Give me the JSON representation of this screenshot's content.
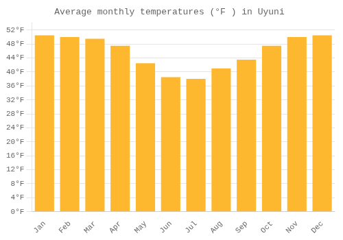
{
  "chart_data": {
    "type": "bar",
    "title": "Average monthly temperatures (°F ) in Uyuni",
    "categories": [
      "Jan",
      "Feb",
      "Mar",
      "Apr",
      "May",
      "Jun",
      "Jul",
      "Aug",
      "Sep",
      "Oct",
      "Nov",
      "Dec"
    ],
    "values": [
      50.5,
      50.0,
      49.5,
      47.5,
      42.5,
      38.5,
      38.0,
      41.0,
      43.5,
      47.5,
      50.0,
      50.5
    ],
    "color": "#FDB830",
    "ylim": [
      0,
      54
    ],
    "yticks": [
      {
        "value": 0,
        "label": "0°F"
      },
      {
        "value": 4,
        "label": "4°F"
      },
      {
        "value": 8,
        "label": "8°F"
      },
      {
        "value": 12,
        "label": "12°F"
      },
      {
        "value": 16,
        "label": "16°F"
      },
      {
        "value": 20,
        "label": "20°F"
      },
      {
        "value": 24,
        "label": "24°F"
      },
      {
        "value": 28,
        "label": "28°F"
      },
      {
        "value": 32,
        "label": "32°F"
      },
      {
        "value": 36,
        "label": "36°F"
      },
      {
        "value": 40,
        "label": "40°F"
      },
      {
        "value": 44,
        "label": "44°F"
      },
      {
        "value": 48,
        "label": "48°F"
      },
      {
        "value": 52,
        "label": "52°F"
      }
    ],
    "grid": true
  }
}
